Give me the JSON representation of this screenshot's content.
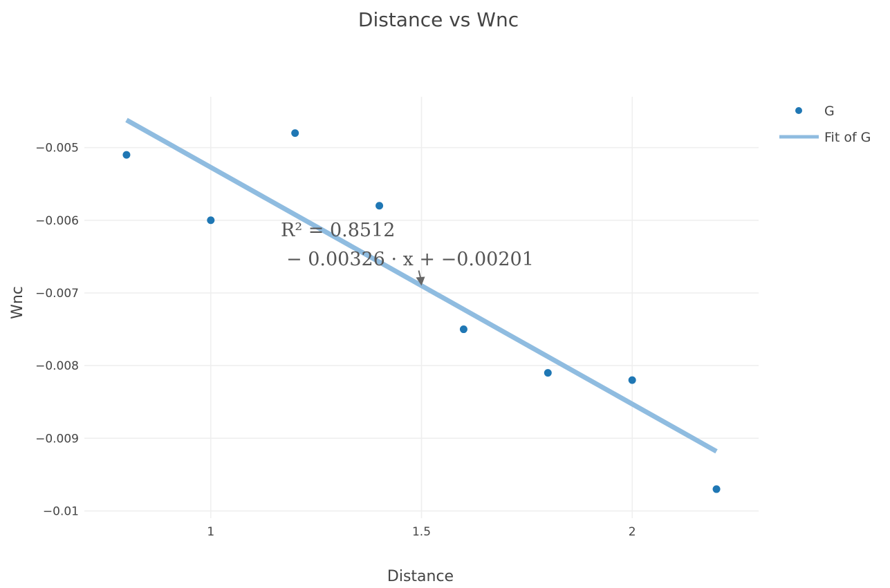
{
  "chart_data": {
    "type": "scatter",
    "title": "Distance  vs  Wnc",
    "xlabel": "Distance",
    "ylabel": "Wnc",
    "xlim": [
      0.7,
      2.3
    ],
    "ylim": [
      -0.0101,
      -0.0043
    ],
    "x_ticks": [
      {
        "value": 1,
        "label": "1"
      },
      {
        "value": 1.5,
        "label": "1.5"
      },
      {
        "value": 2,
        "label": "2"
      }
    ],
    "y_ticks": [
      {
        "value": -0.005,
        "label": "−0.005"
      },
      {
        "value": -0.006,
        "label": "−0.006"
      },
      {
        "value": -0.007,
        "label": "−0.007"
      },
      {
        "value": -0.008,
        "label": "−0.008"
      },
      {
        "value": -0.009,
        "label": "−0.009"
      },
      {
        "value": -0.01,
        "label": "−0.01"
      }
    ],
    "grid": true,
    "legend": "top-right",
    "series": [
      {
        "name": "G",
        "mode": "markers",
        "color": "#1f77b4",
        "x": [
          0.8,
          1.0,
          1.2,
          1.4,
          1.6,
          1.8,
          2.0,
          2.2
        ],
        "y": [
          -0.0051,
          -0.006,
          -0.0048,
          -0.0058,
          -0.0075,
          -0.0081,
          -0.0082,
          -0.0097
        ]
      },
      {
        "name": "Fit of G",
        "mode": "line",
        "color": "#8fbce0",
        "x": [
          0.8,
          2.2
        ],
        "y": [
          -0.00462,
          -0.00918
        ]
      }
    ],
    "annotation": {
      "line1": "R² = 0.8512",
      "line2": "− 0.00326 · x + −0.00201",
      "arrow_to": {
        "x": 1.5,
        "y": -0.0069
      }
    }
  }
}
